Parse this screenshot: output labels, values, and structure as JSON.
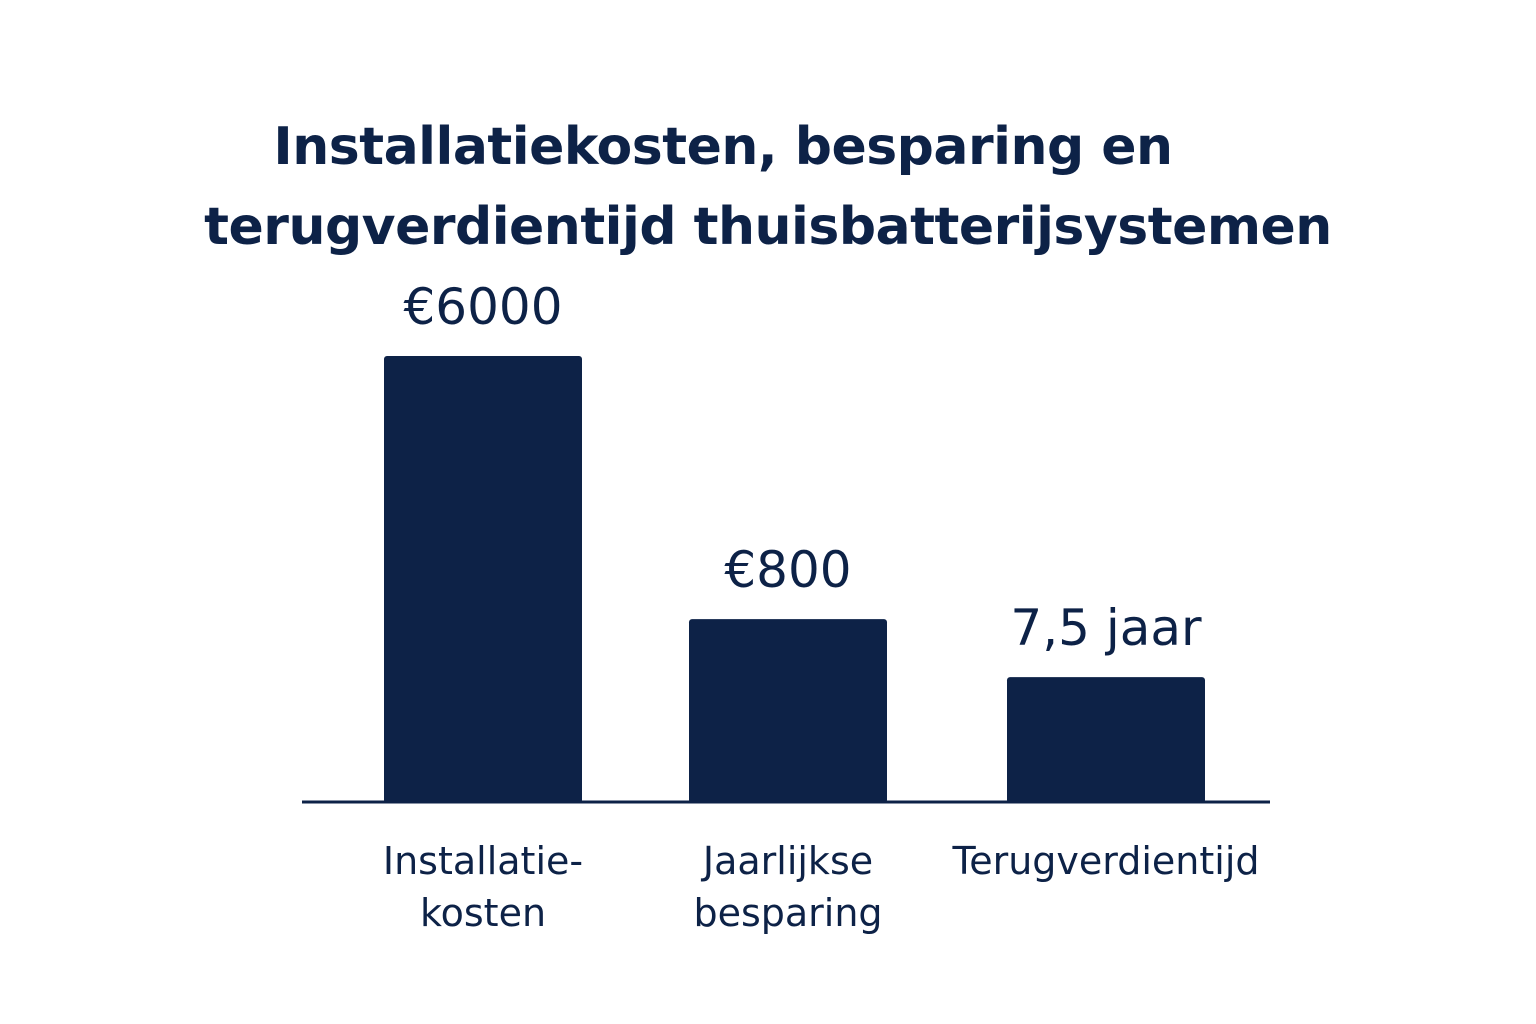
{
  "chart_data": {
    "type": "bar",
    "title": "Installatiekosten, besparing en terugverdientijd thuisbatterijsystemen",
    "title_lines": [
      "Installatiekosten, besparing en",
      "terugverdientijd thuisbatterijsystemen"
    ],
    "categories": [
      "Installatie-kosten",
      "Jaarlijkse besparing",
      "Terugverdientijd"
    ],
    "category_label_lines": [
      [
        "Installatie-",
        "kosten"
      ],
      [
        "Jaarlijkse",
        "besparing"
      ],
      [
        "Terugverdientijd"
      ]
    ],
    "values": [
      6000,
      800,
      7.5
    ],
    "value_labels": [
      "€6000",
      "€800",
      "7,5 jaar"
    ],
    "relative_bar_heights": [
      1.0,
      0.41,
      0.28
    ],
    "xlabel": "",
    "ylabel": "",
    "grid": false,
    "legend": "none",
    "colors": {
      "bar": "#0d2247",
      "text": "#0d2247",
      "axis": "#0d2247",
      "background": "#ffffff"
    }
  }
}
